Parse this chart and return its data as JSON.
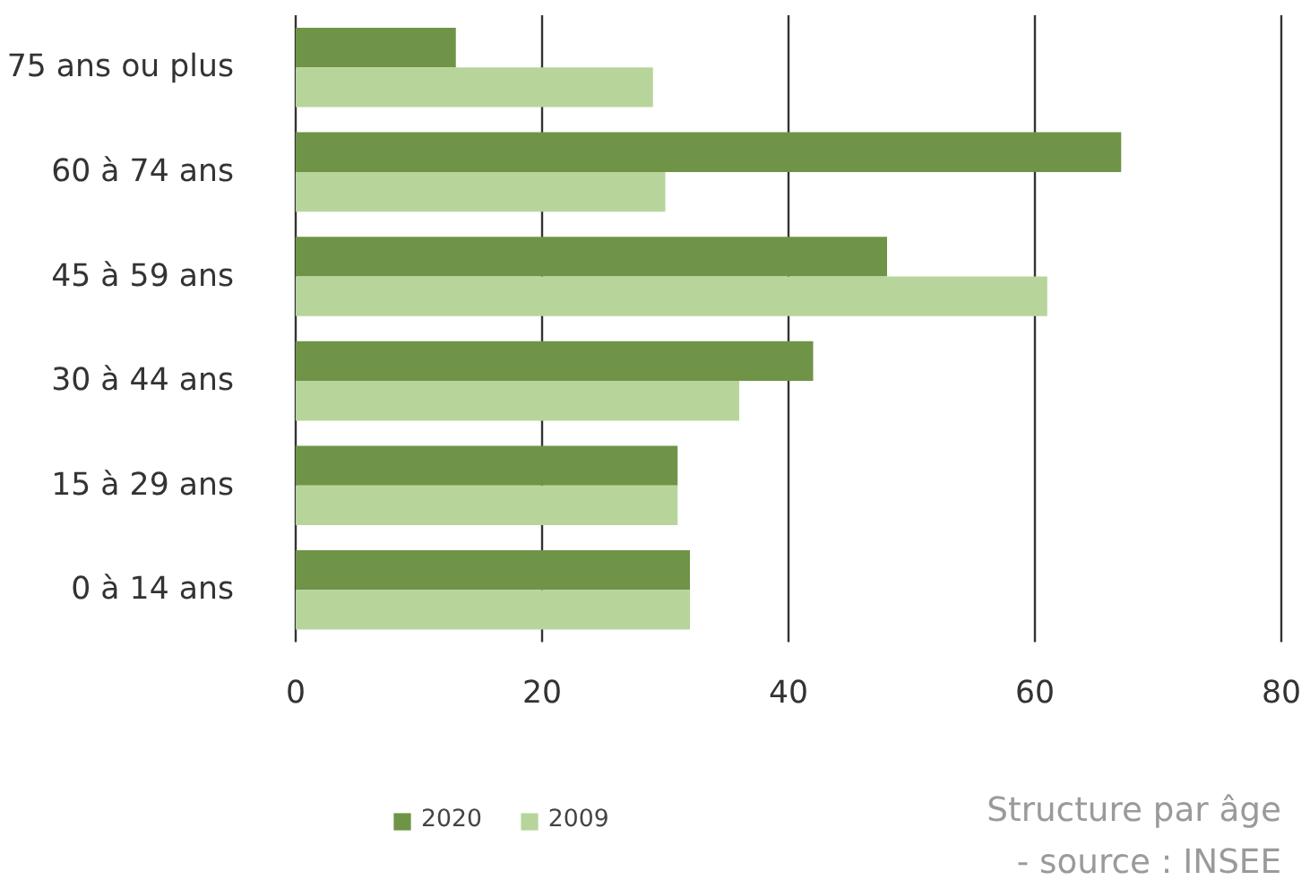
{
  "chart_data": {
    "type": "bar",
    "orientation": "horizontal",
    "categories": [
      "75 ans ou plus",
      "60 à 74 ans",
      "45 à 59 ans",
      "30 à 44 ans",
      "15 à 29 ans",
      "0 à 14 ans"
    ],
    "series": [
      {
        "name": "2020",
        "color": "#6f9447",
        "values": [
          13,
          67,
          48,
          42,
          31,
          32
        ]
      },
      {
        "name": "2009",
        "color": "#b7d59b",
        "values": [
          29,
          30,
          61,
          36,
          31,
          32
        ]
      }
    ],
    "xlim": [
      0,
      80
    ],
    "xticks": [
      0,
      20,
      40,
      60,
      80
    ],
    "grid": "x",
    "legend": "bottom",
    "annotations": [
      "Structure par âge",
      "- source : INSEE"
    ]
  }
}
